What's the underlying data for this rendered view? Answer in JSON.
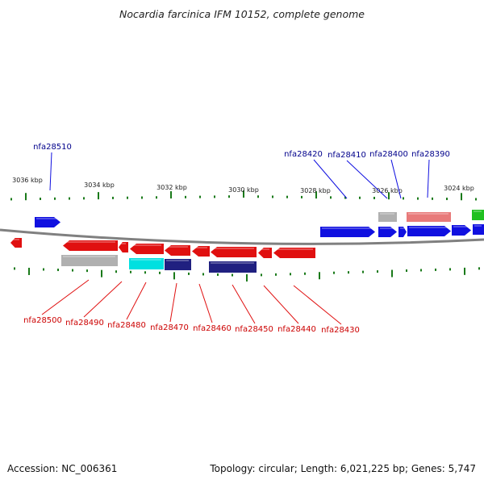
{
  "title": "Nocardia farcinica IFM 10152, complete genome",
  "footer": {
    "accession": "Accession: NC_006361",
    "summary": "Topology: circular; Length: 6,021,225 bp; Genes: 5,747"
  },
  "colors": {
    "forward_gene": "#1010e0",
    "reverse_gene": "#e01010",
    "forward_label": "#00008b",
    "reverse_label": "#cc0000",
    "backbone": "#808080",
    "tick": "#1a7a1a",
    "cds_gray": "#b0b0b0",
    "cds_cyan": "#00e0e0",
    "cds_navy": "#202080",
    "cds_pink": "#e87a7a",
    "cds_green": "#20c020"
  },
  "scale_labels": [
    "3036 kbp",
    "3034 kbp",
    "3032 kbp",
    "3030 kbp",
    "3028 kbp",
    "3026 kbp",
    "3024 kbp"
  ],
  "forward_labels": [
    "nfa28510",
    "nfa28420",
    "nfa28410",
    "nfa28400",
    "nfa28390"
  ],
  "reverse_labels": [
    "nfa28500",
    "nfa28490",
    "nfa28480",
    "nfa28470",
    "nfa28460",
    "nfa28450",
    "nfa28440",
    "nfa28430"
  ]
}
